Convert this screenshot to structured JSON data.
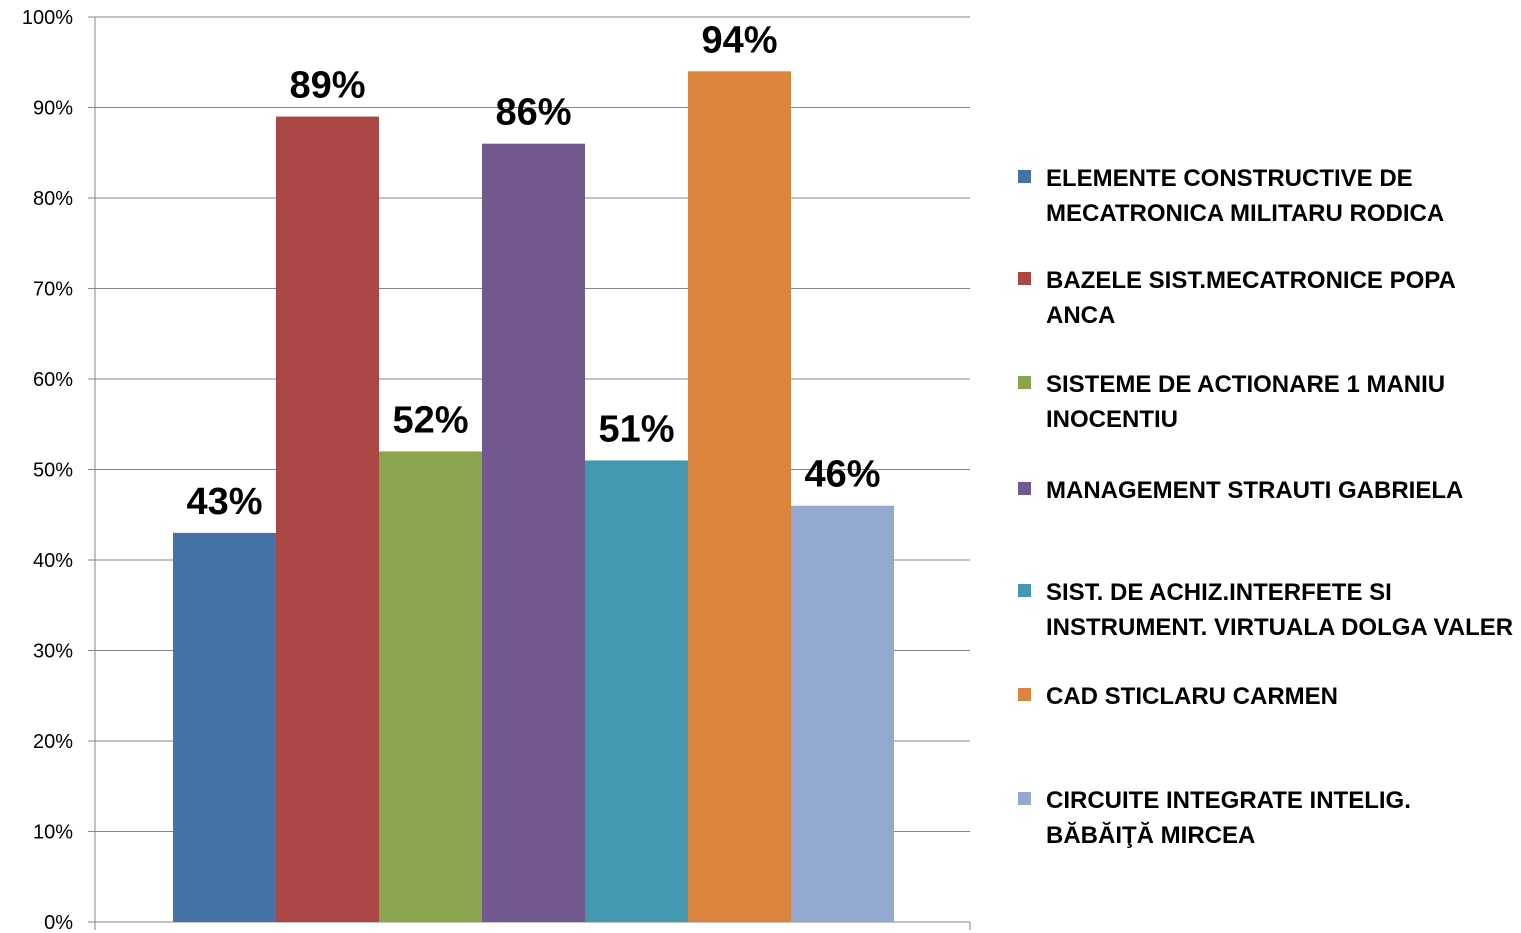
{
  "chart_data": {
    "type": "bar",
    "title": "",
    "xlabel": "",
    "ylabel": "",
    "ylim": [
      0,
      100
    ],
    "yticks": [
      "0%",
      "10%",
      "20%",
      "30%",
      "40%",
      "50%",
      "60%",
      "70%",
      "80%",
      "90%",
      "100%"
    ],
    "grid": true,
    "legend_position": "right",
    "series": [
      {
        "name": "ELEMENTE CONSTRUCTIVE DE MECATRONICA MILITARU RODICA",
        "value": 43,
        "label": "43%",
        "color": "#4572a7"
      },
      {
        "name": "BAZELE SIST.MECATRONICE POPA ANCA",
        "value": 89,
        "label": "89%",
        "color": "#aa4643"
      },
      {
        "name": "SISTEME DE ACTIONARE 1 MANIU INOCENTIU",
        "value": 52,
        "label": "52%",
        "color": "#89a54e"
      },
      {
        "name": "MANAGEMENT STRAUTI GABRIELA",
        "value": 86,
        "label": "86%",
        "color": "#71588f"
      },
      {
        "name": "SIST. DE ACHIZ.INTERFETE SI INSTRUMENT. VIRTUALA DOLGA VALER",
        "value": 51,
        "label": "51%",
        "color": "#4198af"
      },
      {
        "name": "CAD STICLARU CARMEN",
        "value": 94,
        "label": "94%",
        "color": "#db843d"
      },
      {
        "name": "CIRCUITE INTEGRATE INTELIG. BĂBĂIŢĂ MIRCEA",
        "value": 46,
        "label": "46%",
        "color": "#93a9cf"
      }
    ]
  }
}
